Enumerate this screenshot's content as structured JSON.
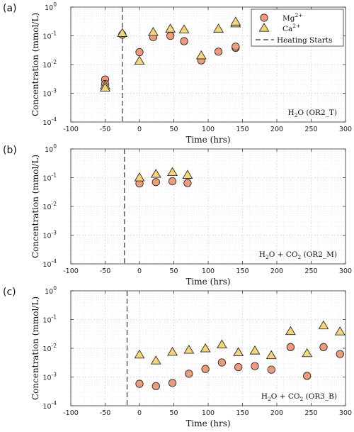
{
  "colors": {
    "mg_fill": "#ee9b7d",
    "ca_fill": "#f6d57a",
    "marker_edge": "#2b2b2b",
    "heating_line": "#555555",
    "grid": "#e6e6e6",
    "axis": "#333333"
  },
  "legend": {
    "mg_label": "Mg",
    "mg_sup": "2+",
    "ca_label": "Ca",
    "ca_sup": "2+",
    "heating_label": "Heating Starts",
    "placement": "top-right of panel (a)"
  },
  "axes": {
    "xlabel": "Time (hrs)",
    "ylabel": "Concentration (mmol/L)",
    "xlim": [
      -100,
      300
    ],
    "xticks": [
      "-100",
      "-50",
      "0",
      "50",
      "100",
      "150",
      "200",
      "250",
      "300"
    ],
    "ylim_log10": [
      -4,
      0
    ],
    "yticks": [
      {
        "base": "10",
        "exp": "0"
      },
      {
        "base": "10",
        "exp": "-1"
      },
      {
        "base": "10",
        "exp": "-2"
      },
      {
        "base": "10",
        "exp": "-3"
      },
      {
        "base": "10",
        "exp": "-4"
      }
    ],
    "yscale": "log",
    "grid": true
  },
  "chart_data": [
    {
      "type": "scatter",
      "panel": "(a)",
      "annotation": "H2O (OR2_T)",
      "annotation_parts": {
        "pre": "H",
        "sub1": "2",
        "mid": "O (OR2_T)"
      },
      "heating_start": -25,
      "series": [
        {
          "name": "Mg2+",
          "marker": "circle",
          "x": [
            -50,
            -50,
            -25,
            0,
            20,
            45,
            65,
            90,
            115,
            140,
            140
          ],
          "y": [
            0.003,
            0.0021,
            0.11,
            0.027,
            0.09,
            0.1,
            0.065,
            0.014,
            0.028,
            0.038,
            0.042
          ]
        },
        {
          "name": "Ca2+",
          "marker": "triangle",
          "x": [
            -50,
            -50,
            -25,
            0,
            20,
            45,
            65,
            90,
            115,
            140,
            140
          ],
          "y": [
            0.0018,
            0.0015,
            0.12,
            0.013,
            0.13,
            0.17,
            0.16,
            0.02,
            0.17,
            0.26,
            0.3
          ]
        }
      ]
    },
    {
      "type": "scatter",
      "panel": "(b)",
      "annotation": "H2O + CO2 (OR2_M)",
      "annotation_parts": {
        "pre": "H",
        "sub1": "2",
        "mid": "O + CO",
        "sub2": "2",
        "post": " (OR2_M)"
      },
      "heating_start": -22,
      "series": [
        {
          "name": "Mg2+",
          "marker": "circle",
          "x": [
            0,
            24,
            48,
            70
          ],
          "y": [
            0.063,
            0.07,
            0.075,
            0.065
          ]
        },
        {
          "name": "Ca2+",
          "marker": "triangle",
          "x": [
            0,
            24,
            48,
            70
          ],
          "y": [
            0.098,
            0.13,
            0.15,
            0.12
          ]
        }
      ]
    },
    {
      "type": "scatter",
      "panel": "(c)",
      "annotation": "H2O + CO2 (OR3_B)",
      "annotation_parts": {
        "pre": "H",
        "sub1": "2",
        "mid": "O + CO",
        "sub2": "2",
        "post": " (OR3_B)"
      },
      "heating_start": -18,
      "series": [
        {
          "name": "Mg2+",
          "marker": "circle",
          "x": [
            0,
            24,
            48,
            72,
            96,
            120,
            144,
            168,
            192,
            220,
            244,
            268,
            292
          ],
          "y": [
            0.00058,
            0.00048,
            0.00062,
            0.0013,
            0.0019,
            0.0032,
            0.0022,
            0.0024,
            0.0018,
            0.011,
            0.0011,
            0.011,
            0.0063
          ]
        },
        {
          "name": "Ca2+",
          "marker": "triangle",
          "x": [
            0,
            24,
            48,
            72,
            96,
            120,
            144,
            168,
            192,
            220,
            244,
            268,
            292
          ],
          "y": [
            0.0058,
            0.0036,
            0.0072,
            0.0085,
            0.0095,
            0.013,
            0.007,
            0.008,
            0.0055,
            0.038,
            0.0065,
            0.06,
            0.037
          ]
        }
      ]
    }
  ]
}
